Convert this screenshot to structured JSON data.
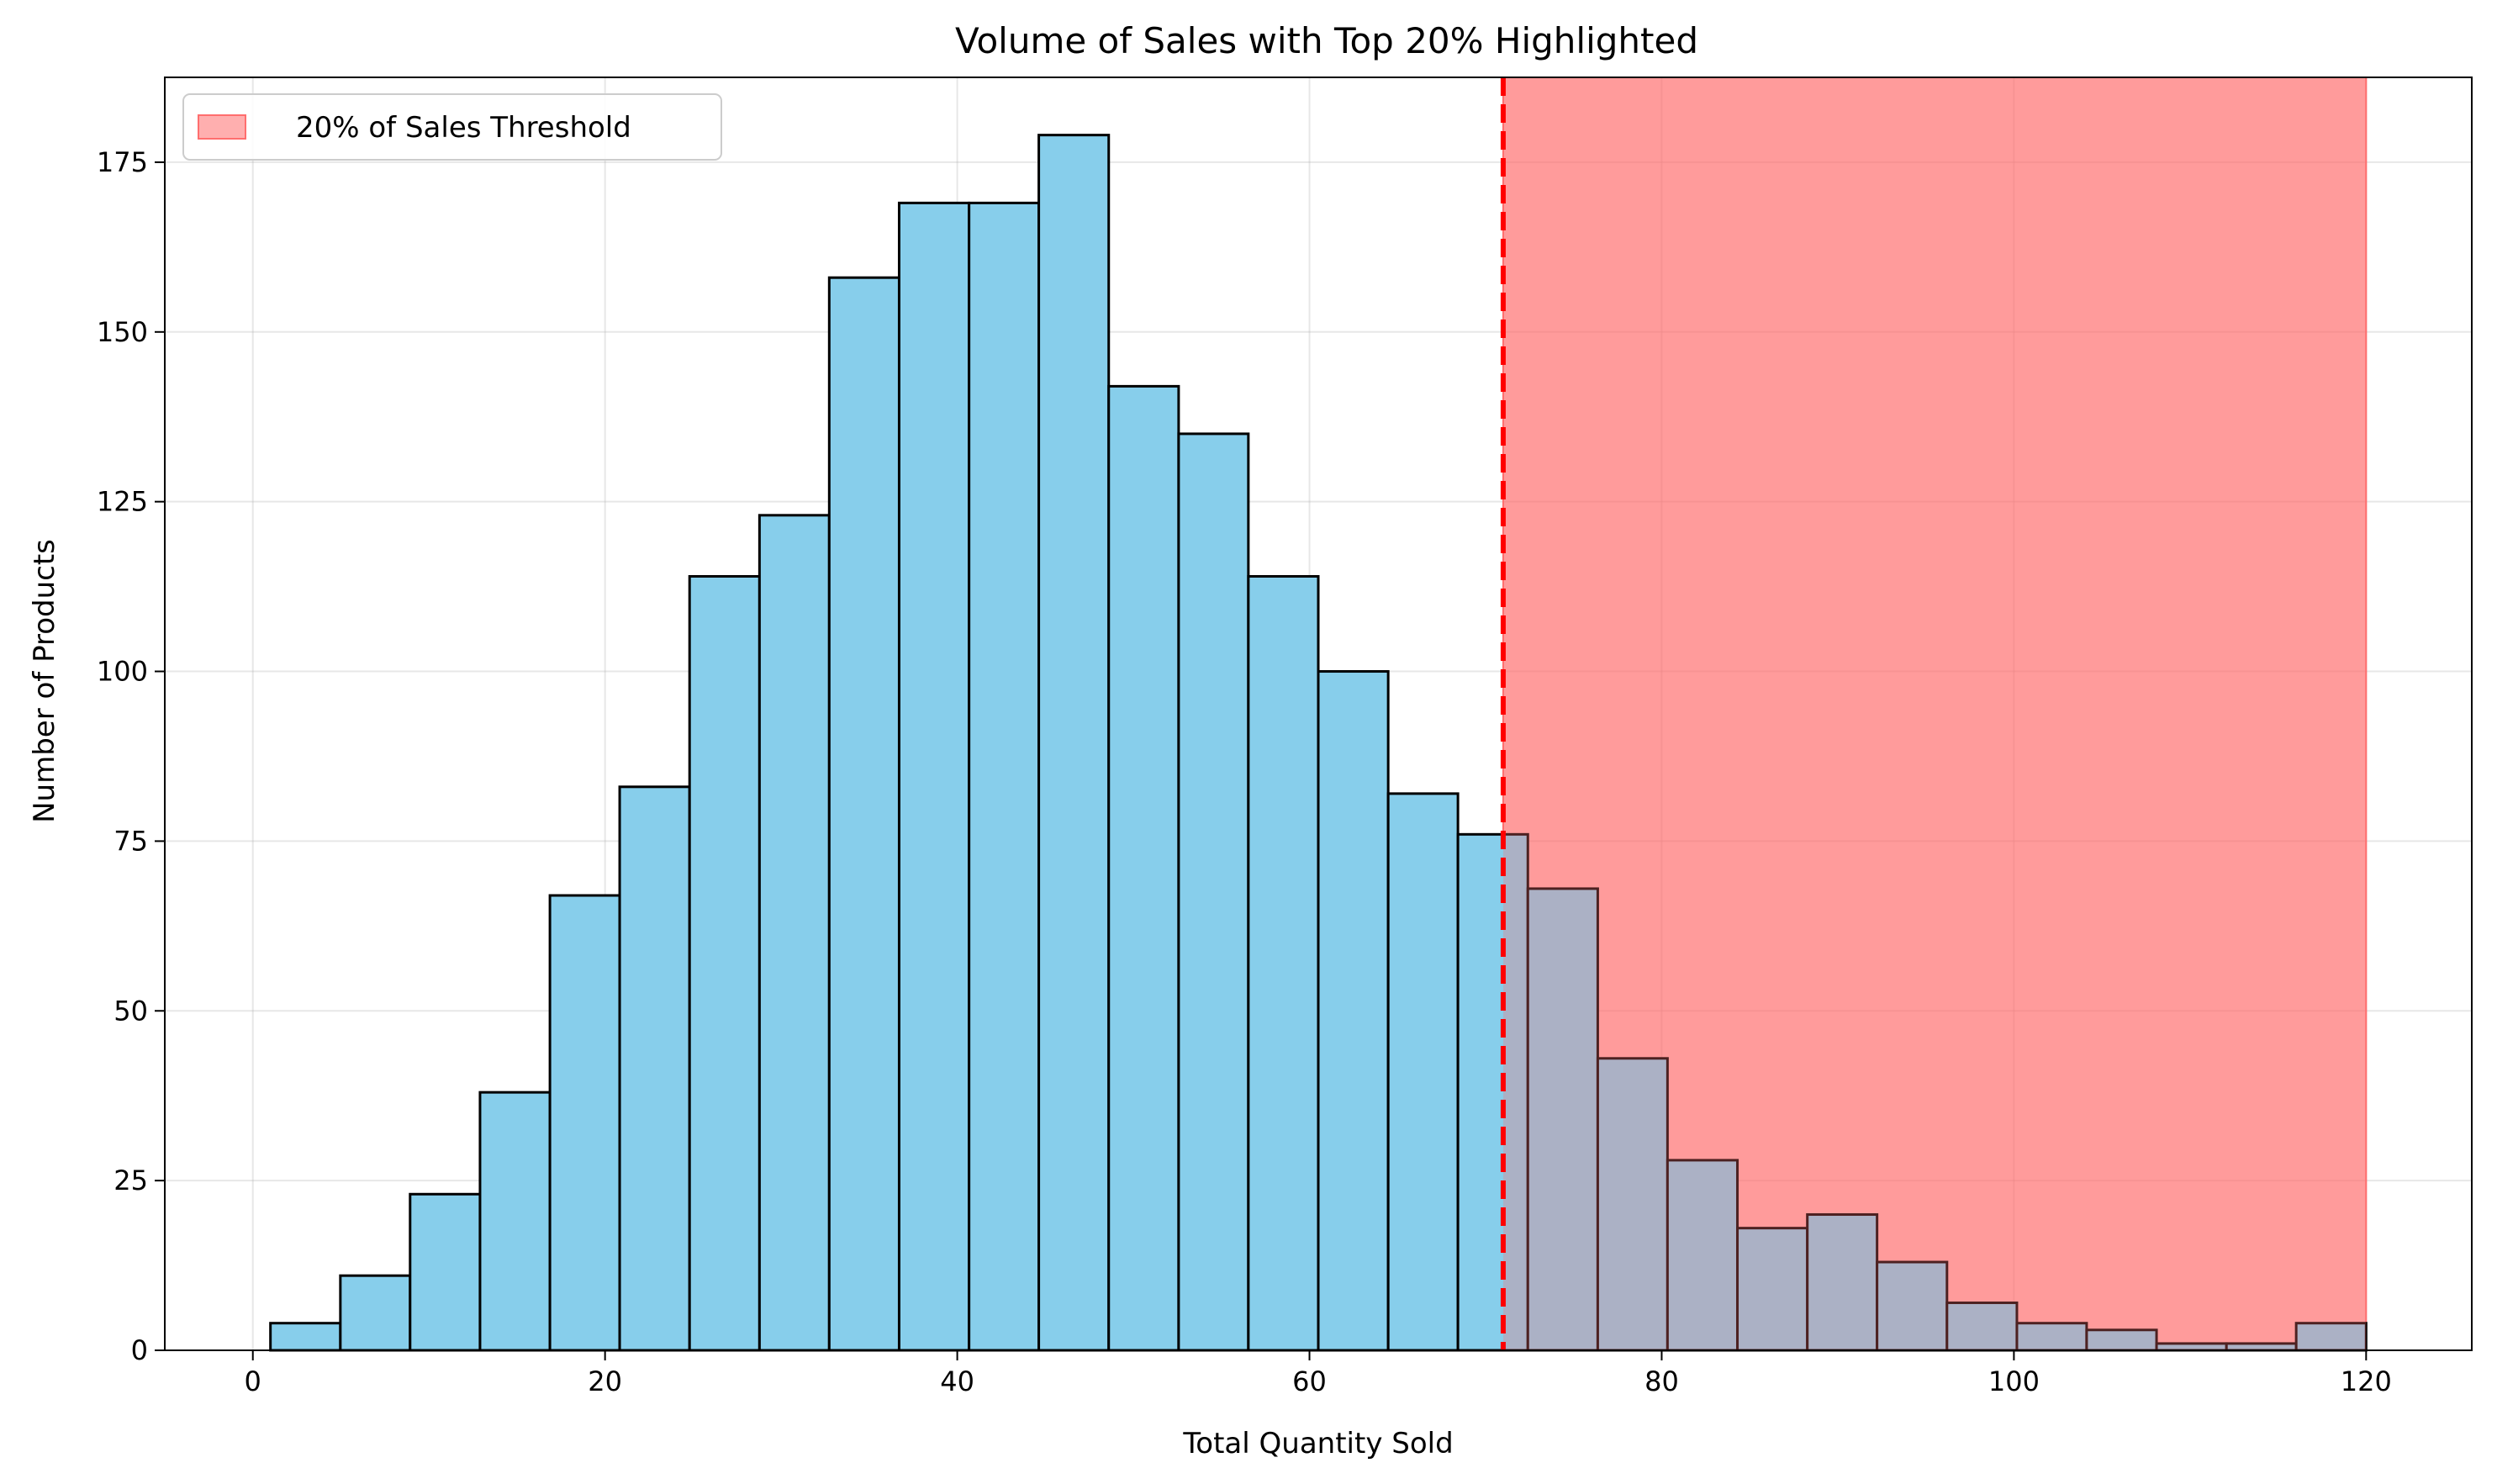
{
  "chart_data": {
    "type": "bar",
    "title": "Volume of Sales with Top 20% Highlighted",
    "xlabel": "Total Quantity Sold",
    "ylabel": "Number of Products",
    "xlim": [
      -5,
      126
    ],
    "ylim": [
      0,
      187.5
    ],
    "xticks": [
      0,
      20,
      40,
      60,
      80,
      100,
      120
    ],
    "yticks": [
      0,
      25,
      50,
      75,
      100,
      125,
      150,
      175
    ],
    "grid": true,
    "legend_position": "top-left",
    "bin_edges": [
      1,
      4.97,
      8.93,
      12.9,
      16.87,
      20.83,
      24.8,
      28.77,
      32.73,
      36.7,
      40.67,
      44.63,
      48.6,
      52.57,
      56.53,
      60.5,
      64.47,
      68.43,
      72.4,
      76.37,
      80.33,
      84.3,
      88.27,
      92.23,
      96.2,
      100.17,
      104.13,
      108.1,
      112.07,
      116.03,
      120
    ],
    "counts": [
      4,
      11,
      23,
      38,
      67,
      83,
      114,
      123,
      158,
      169,
      169,
      179,
      142,
      135,
      114,
      100,
      82,
      76,
      68,
      43,
      28,
      18,
      20,
      13,
      7,
      4,
      3,
      1,
      1,
      4
    ],
    "threshold": {
      "label": "20% of Sales Threshold",
      "x": 71,
      "span_end": 120,
      "line_color": "#ff0000",
      "fill_color": "#ff6e6e"
    },
    "bar_color": "#87ceeb",
    "edge_color": "#000000"
  }
}
